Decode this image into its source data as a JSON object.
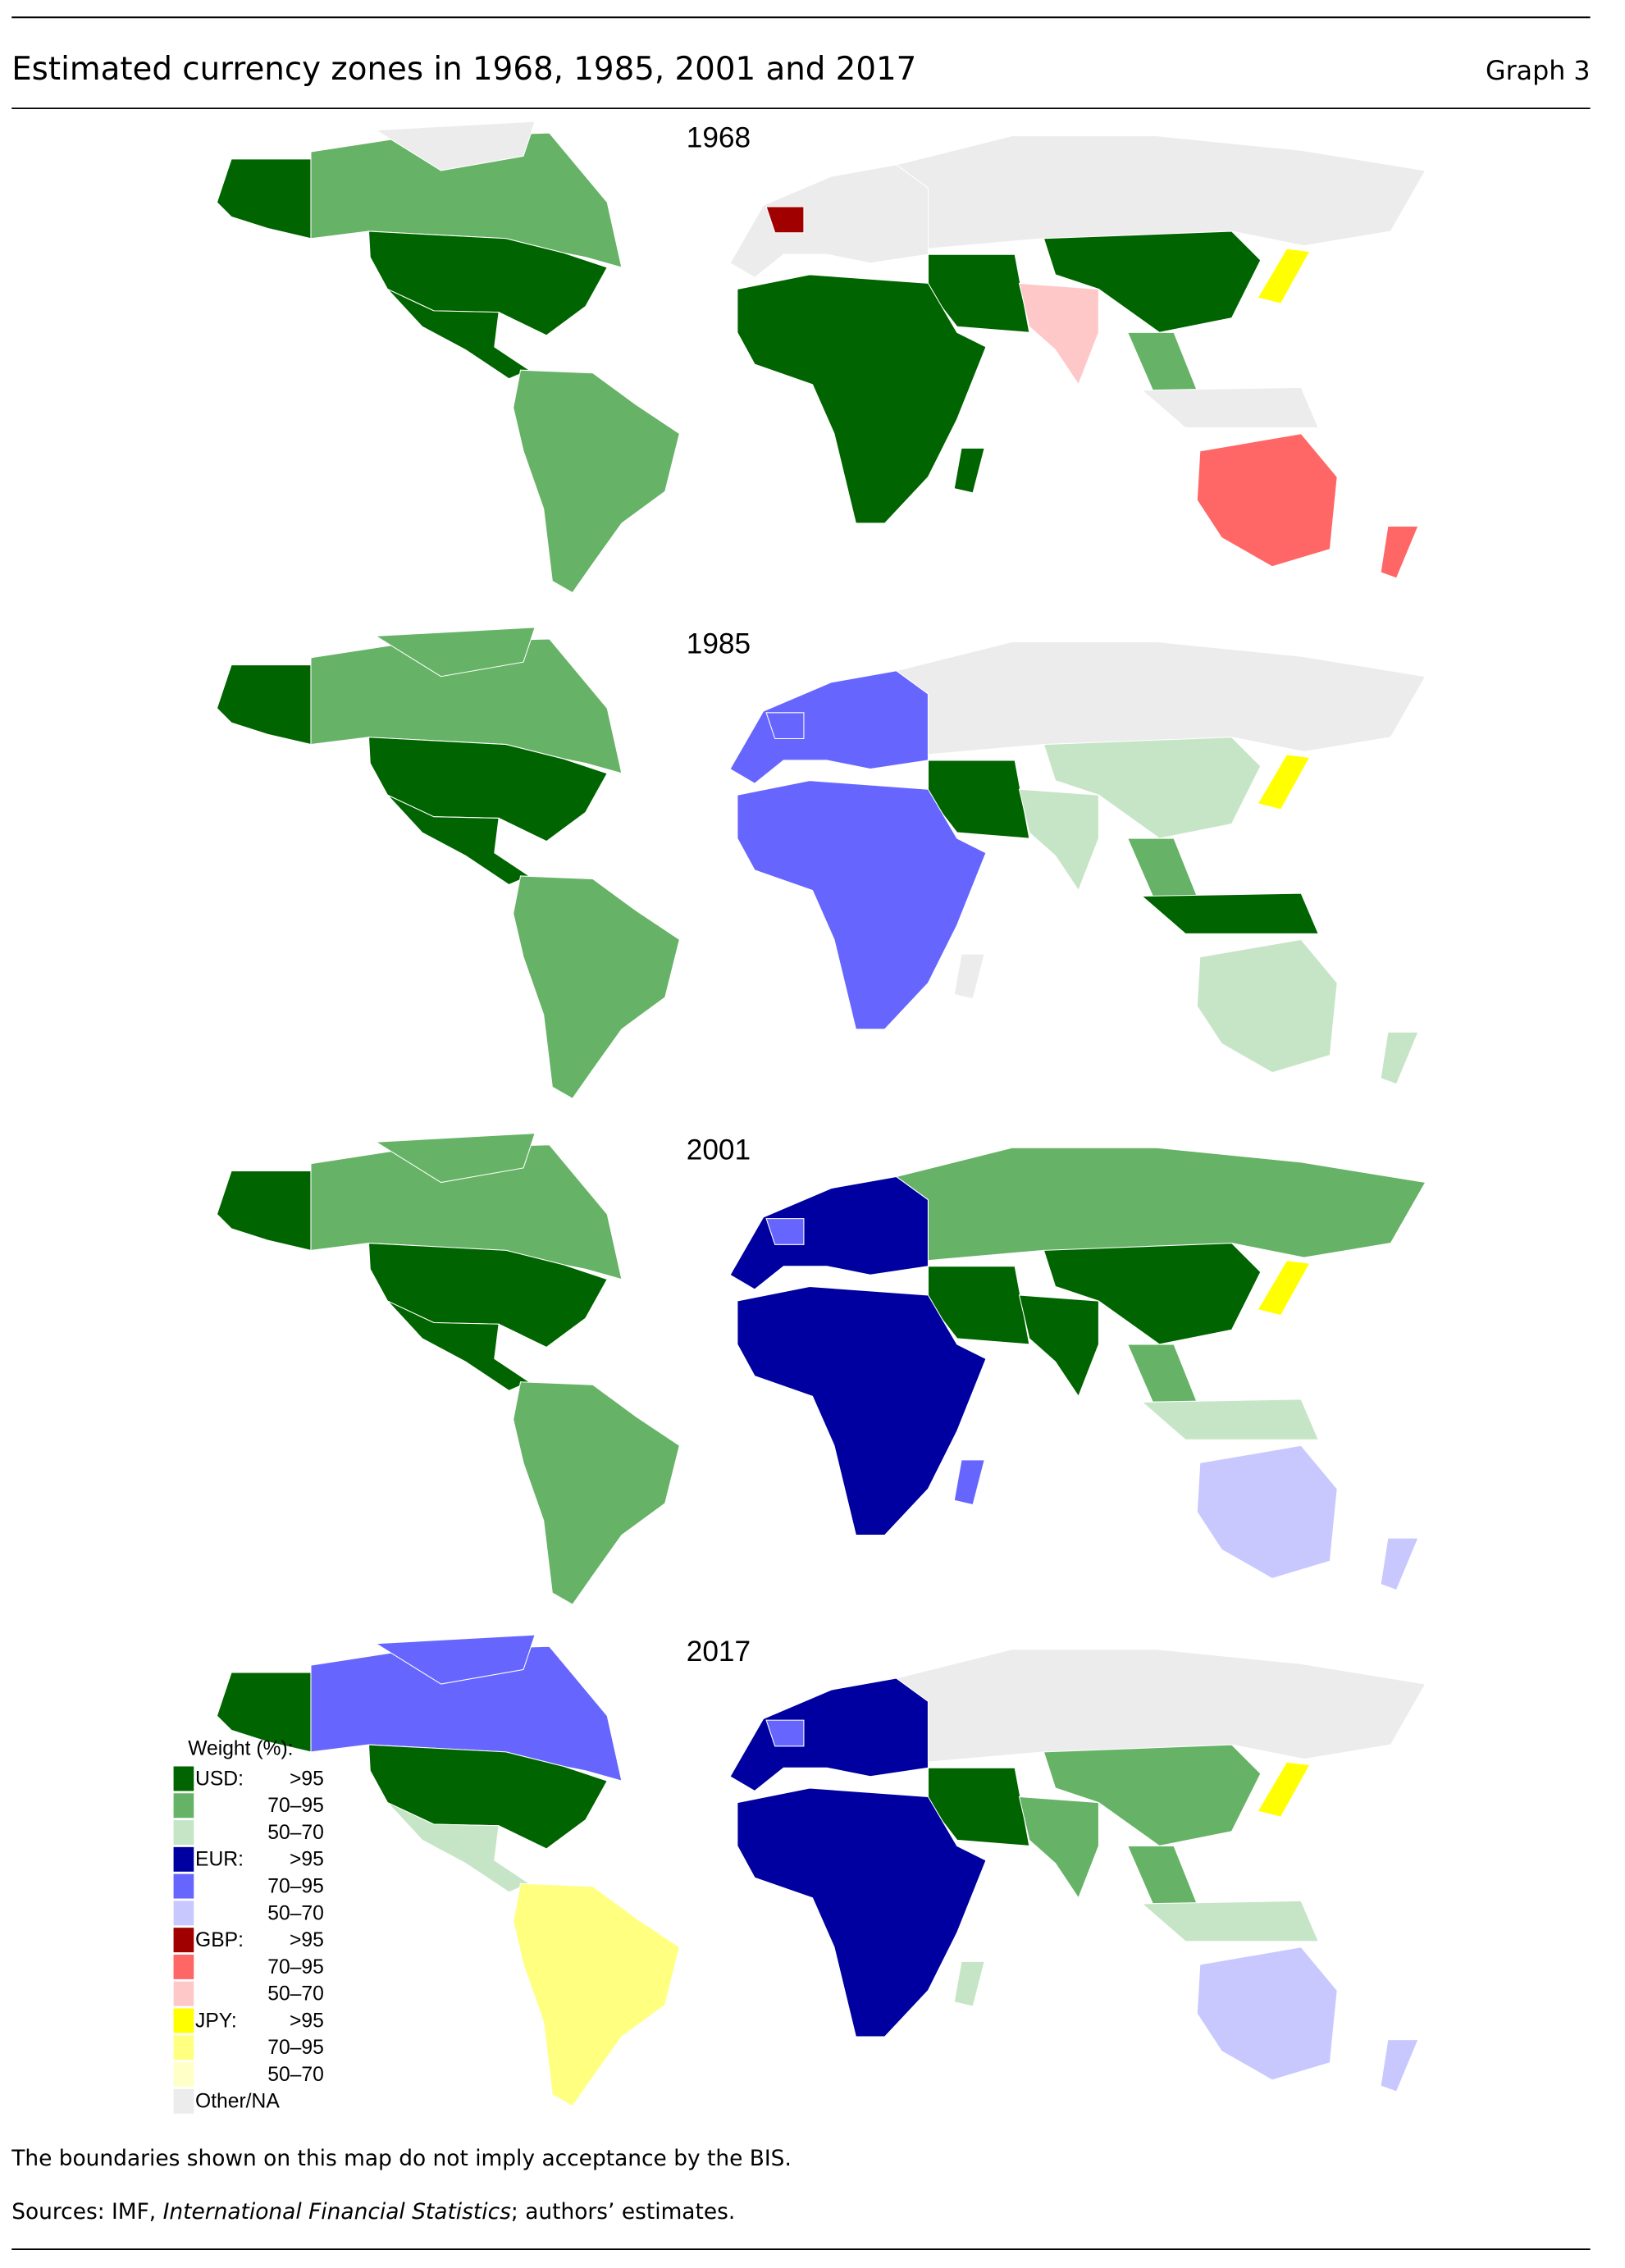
{
  "header": {
    "title": "Estimated currency zones in 1968, 1985, 2001 and 2017",
    "graph_label": "Graph 3"
  },
  "panels": [
    {
      "year": "1968"
    },
    {
      "year": "1985"
    },
    {
      "year": "2001"
    },
    {
      "year": "2017"
    }
  ],
  "legend": {
    "title": "Weight (%):",
    "groups": [
      {
        "currency": "USD:",
        "items": [
          {
            "label": ">95",
            "color": "#006400"
          },
          {
            "label": "70–95",
            "color": "#66b266"
          },
          {
            "label": "50–70",
            "color": "#c6e5c6"
          }
        ]
      },
      {
        "currency": "EUR:",
        "items": [
          {
            "label": ">95",
            "color": "#0000a0"
          },
          {
            "label": "70–95",
            "color": "#6666ff"
          },
          {
            "label": "50–70",
            "color": "#c8c8ff"
          }
        ]
      },
      {
        "currency": "GBP:",
        "items": [
          {
            "label": ">95",
            "color": "#a00000"
          },
          {
            "label": "70–95",
            "color": "#ff6666"
          },
          {
            "label": "50–70",
            "color": "#ffc8c8"
          }
        ]
      },
      {
        "currency": "JPY:",
        "items": [
          {
            "label": ">95",
            "color": "#ffff00"
          },
          {
            "label": "70–95",
            "color": "#ffff80"
          },
          {
            "label": "50–70",
            "color": "#ffffc8"
          }
        ]
      }
    ],
    "other": {
      "label": "Other/NA",
      "color": "#ececec"
    }
  },
  "notes": {
    "disclaimer": "The boundaries shown on this map do not imply acceptance by the BIS.",
    "sources_prefix": "Sources: IMF, ",
    "sources_italic": "International Financial Statistics",
    "sources_suffix": "; authors’ estimates."
  }
}
